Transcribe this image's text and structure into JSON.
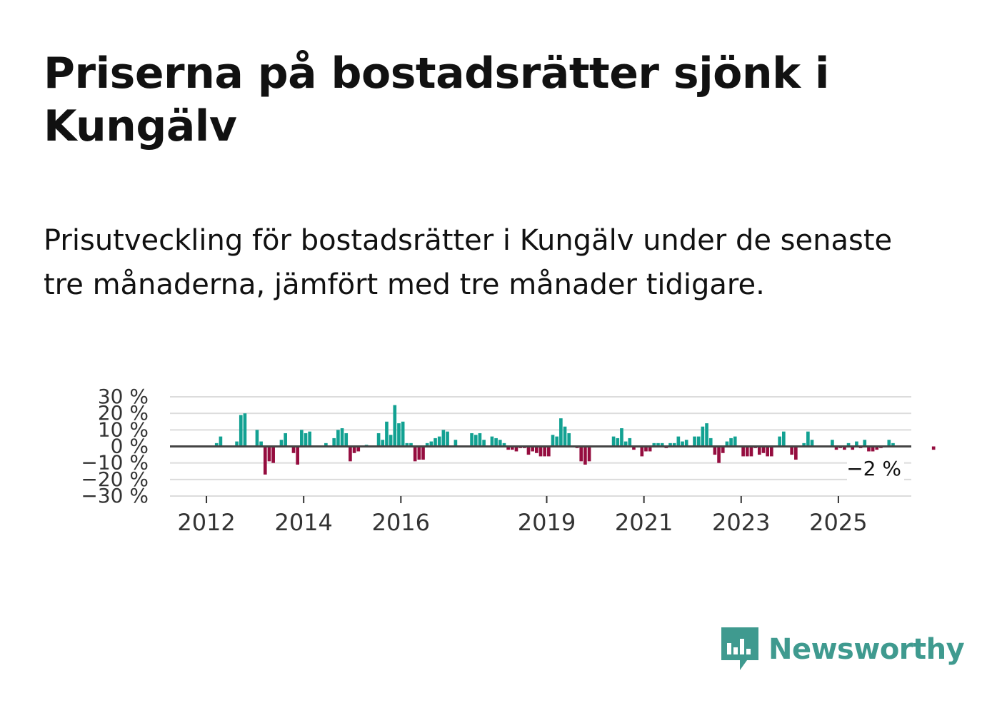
{
  "title": "Priserna på bostadsrätter sjönk i Kungälv",
  "subtitle": "Prisutveckling för bostadsrätter i Kungälv under de senaste tre månaderna, jämfört med tre månader tidigare.",
  "logo": {
    "name": "Newsworthy",
    "color": "#3f9a8f"
  },
  "chart_data": {
    "type": "bar",
    "title": "",
    "xlabel": "",
    "ylabel": "",
    "ylim": [
      -30,
      30
    ],
    "yticks": [
      30,
      20,
      10,
      0,
      -10,
      -20,
      -30
    ],
    "ytick_labels": [
      "30 %",
      "20 %",
      "10 %",
      "0 %",
      "−10 %",
      "−20 %",
      "−30 %"
    ],
    "xticks": [
      2012,
      2014,
      2016,
      2019,
      2021,
      2023,
      2025
    ],
    "xtick_labels": [
      "2012",
      "2014",
      "2016",
      "2019",
      "2021",
      "2023",
      "2025"
    ],
    "x_start": 2011.25,
    "x_end": 2026.5,
    "x_step_months": 1,
    "positive_color": "#12a192",
    "negative_color": "#950d3f",
    "values": [
      0,
      0,
      0,
      0,
      0,
      0,
      0,
      0,
      0,
      0,
      0,
      2,
      6,
      0,
      0,
      0,
      3,
      19,
      20,
      0,
      0,
      10,
      3,
      -17,
      -9,
      -10,
      0,
      4,
      8,
      0,
      -4,
      -11,
      10,
      8,
      9,
      0,
      0,
      0,
      2,
      0,
      5,
      10,
      11,
      8,
      -9,
      -4,
      -3,
      0,
      1,
      0,
      0,
      8,
      4,
      15,
      7,
      25,
      14,
      15,
      2,
      2,
      -9,
      -8,
      -8,
      2,
      3,
      5,
      6,
      10,
      9,
      0,
      4,
      0,
      0,
      0,
      8,
      7,
      8,
      4,
      0,
      6,
      5,
      4,
      2,
      -2,
      -2,
      -3,
      -1,
      -1,
      -5,
      -3,
      -4,
      -6,
      -6,
      -6,
      7,
      6,
      17,
      12,
      8,
      0,
      -1,
      -9,
      -11,
      -9,
      0,
      0,
      0,
      0,
      0,
      6,
      5,
      11,
      3,
      5,
      -2,
      0,
      -6,
      -3,
      -3,
      2,
      2,
      2,
      -1,
      2,
      2,
      6,
      3,
      4,
      0,
      6,
      6,
      12,
      14,
      5,
      -5,
      -10,
      -4,
      3,
      5,
      6,
      0,
      -6,
      -6,
      -6,
      -1,
      -5,
      -4,
      -6,
      -6,
      0,
      6,
      9,
      0,
      -5,
      -8,
      0,
      2,
      9,
      4,
      0,
      0,
      0,
      0,
      4,
      -2,
      -1,
      -2,
      2,
      -2,
      3,
      -1,
      4,
      -3,
      -3,
      -2,
      -1,
      0,
      4,
      2,
      0,
      0,
      0,
      0,
      0,
      0,
      0,
      0,
      0,
      -2,
      0,
      0,
      0,
      0,
      0,
      0,
      0
    ],
    "annotation": {
      "label": "−2 %",
      "value": -2
    }
  }
}
